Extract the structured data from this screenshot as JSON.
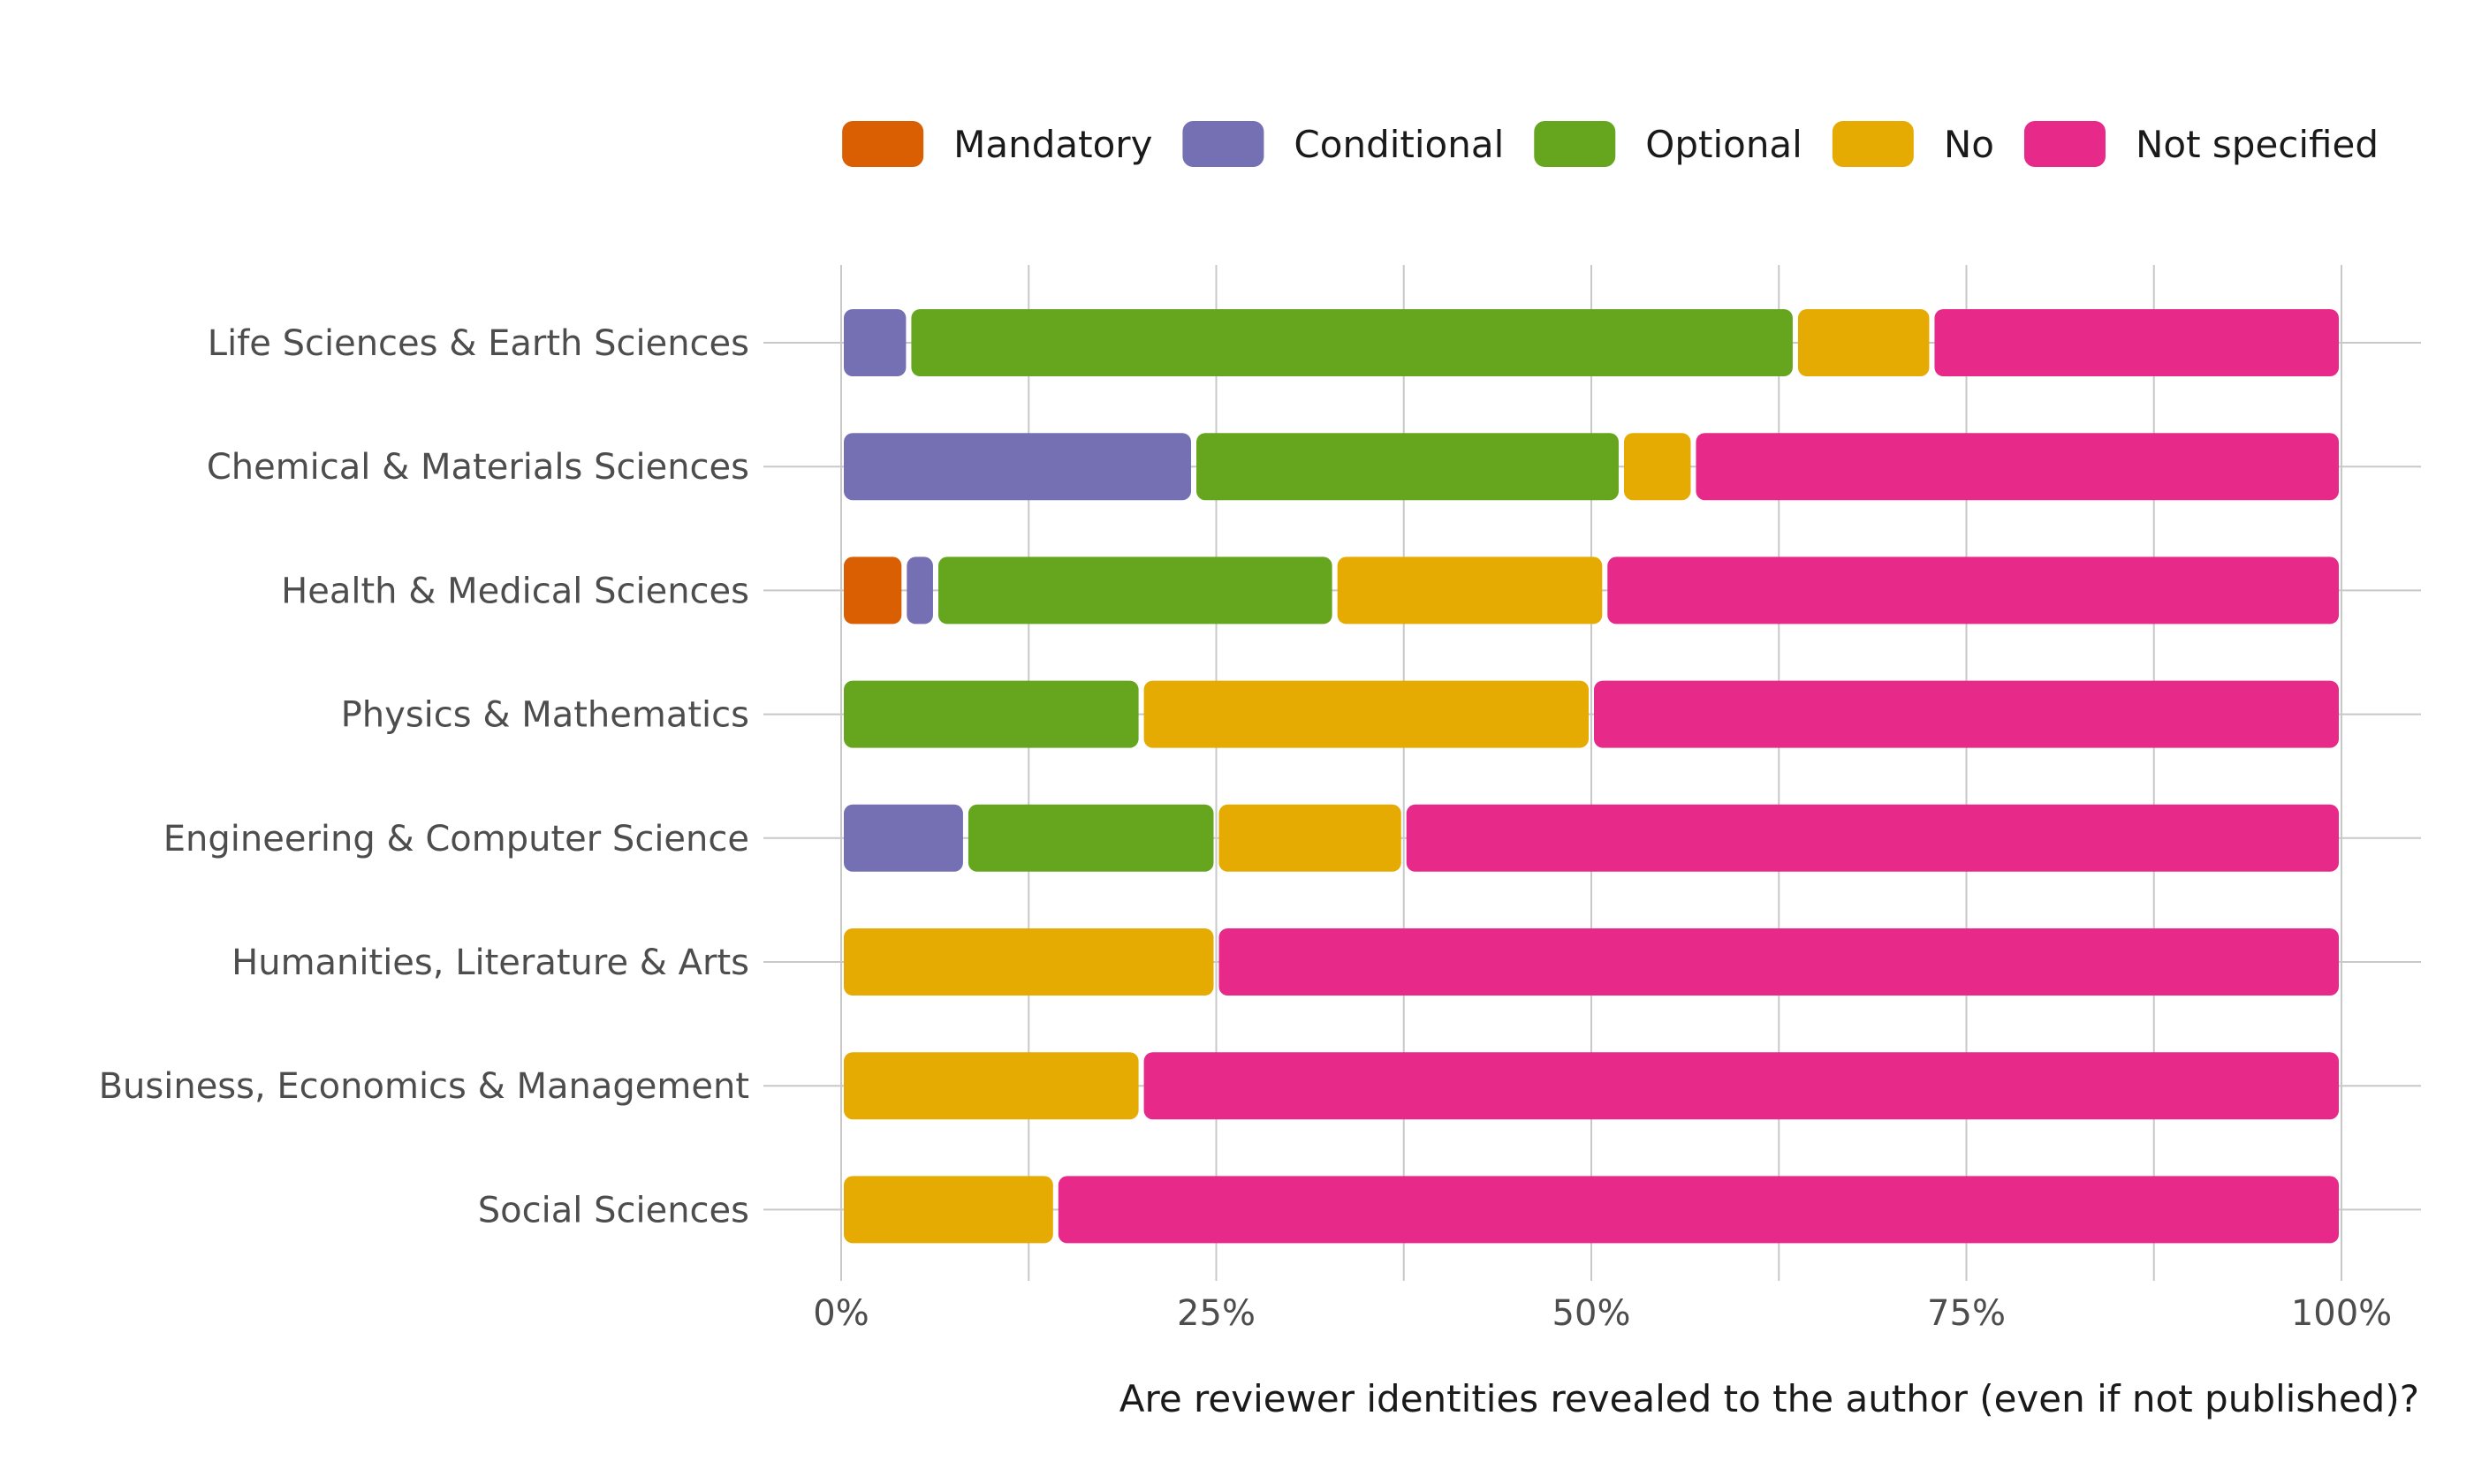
{
  "chart_data": {
    "type": "bar",
    "orientation": "horizontal",
    "stacked": true,
    "normalized": true,
    "xlabel": "Are reviewer identities revealed to the author (even if not published)?",
    "ylabel": "",
    "xlim": [
      0,
      100
    ],
    "x_ticks": [
      "0%",
      "25%",
      "50%",
      "75%",
      "100%"
    ],
    "grid": true,
    "legend_position": "top-right",
    "categories": [
      "Life Sciences & Earth Sciences",
      "Chemical & Materials Sciences",
      "Health & Medical Sciences",
      "Physics & Mathematics",
      "Engineering & Computer Science",
      "Humanities, Literature & Arts",
      "Business, Economics & Management",
      "Social Sciences"
    ],
    "series": [
      {
        "name": "Mandatory",
        "color": "#d95f02",
        "values": [
          0,
          0,
          4.2,
          0,
          0,
          0,
          0,
          0
        ]
      },
      {
        "name": "Conditional",
        "color": "#7570b3",
        "values": [
          4.5,
          23.5,
          2.1,
          0,
          8.3,
          0,
          0,
          0
        ]
      },
      {
        "name": "Optional",
        "color": "#66a61e",
        "values": [
          59.1,
          28.5,
          26.6,
          20.0,
          16.7,
          0,
          0,
          0
        ]
      },
      {
        "name": "No",
        "color": "#e6ab02",
        "values": [
          9.1,
          4.8,
          18.0,
          30.0,
          12.5,
          25.0,
          20.0,
          14.3
        ]
      },
      {
        "name": "Not specified",
        "color": "#e7298a",
        "values": [
          27.3,
          43.2,
          49.1,
          50.0,
          62.5,
          75.0,
          80.0,
          85.7
        ]
      }
    ]
  }
}
